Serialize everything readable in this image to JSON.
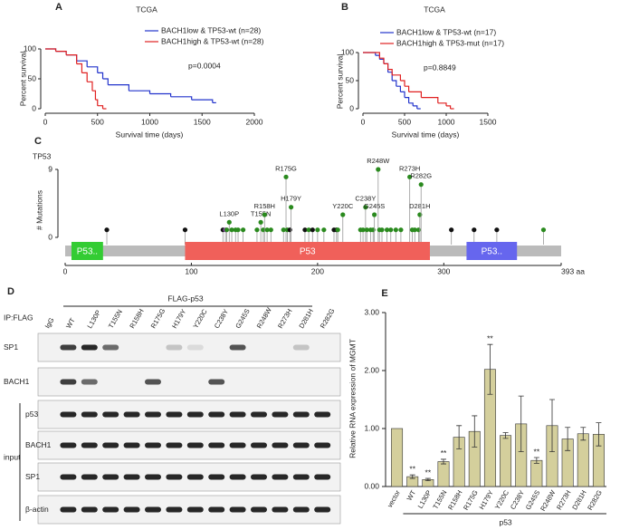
{
  "chart_data": [
    {
      "type": "km",
      "panel": "A",
      "title": "TCGA",
      "x_label": "Survival time (days)",
      "y_label": "Percent survival",
      "annotation": "p=0.0004",
      "xlim": [
        0,
        2000
      ],
      "xticks": [
        0,
        500,
        1000,
        1500,
        2000
      ],
      "ylim": [
        0,
        100
      ],
      "yticks": [
        0,
        50,
        100
      ],
      "series": [
        {
          "name": "BACH1low & TP53-wt (n=28)",
          "color": "#2233cc",
          "x": [
            0,
            100,
            200,
            300,
            400,
            500,
            550,
            600,
            800,
            1000,
            1200,
            1400,
            1600
          ],
          "values": [
            100,
            96,
            90,
            80,
            70,
            60,
            50,
            40,
            30,
            25,
            20,
            15,
            10
          ]
        },
        {
          "name": "BACH1high & TP53-wt (n=28)",
          "color": "#e02020",
          "x": [
            0,
            100,
            200,
            300,
            350,
            400,
            450,
            480,
            500,
            550
          ],
          "values": [
            100,
            96,
            90,
            75,
            60,
            45,
            30,
            15,
            5,
            0
          ]
        }
      ]
    },
    {
      "type": "km",
      "panel": "B",
      "title": "TCGA",
      "x_label": "Survival time (days)",
      "y_label": "Percent survival",
      "annotation": "p=0.8849",
      "xlim": [
        0,
        1500
      ],
      "xticks": [
        0,
        500,
        1000,
        1500
      ],
      "ylim": [
        0,
        100
      ],
      "yticks": [
        0,
        50,
        100
      ],
      "series": [
        {
          "name": "BACH1low & TP53-wt (n=17)",
          "color": "#2233cc",
          "x": [
            0,
            150,
            200,
            250,
            300,
            350,
            400,
            450,
            500,
            550,
            600,
            650
          ],
          "values": [
            100,
            95,
            88,
            80,
            65,
            50,
            40,
            30,
            20,
            10,
            5,
            0
          ]
        },
        {
          "name": "BACH1high & TP53-mut (n=17)",
          "color": "#e02020",
          "x": [
            0,
            200,
            250,
            300,
            350,
            450,
            500,
            550,
            700,
            900,
            1000,
            1050
          ],
          "values": [
            100,
            90,
            80,
            70,
            60,
            50,
            40,
            30,
            20,
            10,
            5,
            0
          ]
        }
      ]
    },
    {
      "type": "lollipop",
      "panel": "C",
      "title": "TP53",
      "y_label": "# Mutations",
      "xlim": [
        0,
        393
      ],
      "xticks": [
        0,
        100,
        200,
        {
          "value": 300,
          "label": "300"
        },
        {
          "value": 393,
          "label": "393 aa"
        }
      ],
      "ylim": [
        0,
        9
      ],
      "yticks": [
        0,
        9
      ],
      "x": [
        33,
        95,
        125,
        127,
        128,
        130,
        132,
        135,
        137,
        141,
        152,
        155,
        157,
        158,
        160,
        163,
        173,
        175,
        176,
        178,
        179,
        190,
        193,
        196,
        200,
        205,
        213,
        215,
        216,
        220,
        234,
        236,
        238,
        239,
        242,
        244,
        245,
        248,
        249,
        251,
        255,
        258,
        262,
        266,
        273,
        275,
        277,
        280,
        281,
        282,
        306,
        324,
        342,
        379
      ],
      "values": [
        1,
        1,
        1,
        1,
        1,
        2,
        1,
        1,
        1,
        1,
        1,
        2,
        1,
        3,
        1,
        1,
        1,
        8,
        1,
        1,
        4,
        1,
        1,
        1,
        1,
        1,
        1,
        1,
        1,
        3,
        1,
        1,
        4,
        1,
        1,
        1,
        3,
        9,
        1,
        1,
        1,
        1,
        1,
        1,
        8,
        1,
        1,
        1,
        3,
        7,
        1,
        1,
        1,
        1
      ],
      "labels": [
        null,
        null,
        null,
        null,
        null,
        "L130P",
        null,
        null,
        null,
        null,
        null,
        "T155N",
        null,
        "R158H",
        null,
        null,
        null,
        "R175G",
        null,
        null,
        "H179Y",
        null,
        null,
        null,
        null,
        null,
        null,
        null,
        null,
        "Y220C",
        null,
        null,
        "C238Y",
        null,
        null,
        null,
        "G245S",
        "R248W",
        null,
        null,
        null,
        null,
        null,
        null,
        "R273H",
        null,
        null,
        null,
        "D281H",
        "R282G",
        null,
        null,
        null,
        null
      ],
      "colors": [
        "#111",
        "#111",
        "#111",
        "#8e44ad",
        "#2a8a1e",
        "#2a8a1e",
        "#2a8a1e",
        "#2a8a1e",
        "#2a8a1e",
        "#2a8a1e",
        "#2a8a1e",
        "#2a8a1e",
        "#2a8a1e",
        "#2a8a1e",
        "#2a8a1e",
        "#2a8a1e",
        "#2a8a1e",
        "#2a8a1e",
        "#2a8a1e",
        "#111",
        "#2a8a1e",
        "#111",
        "#2a8a1e",
        "#111",
        "#2a8a1e",
        "#2a8a1e",
        "#111",
        "#111",
        "#2a8a1e",
        "#2a8a1e",
        "#2a8a1e",
        "#2a8a1e",
        "#2a8a1e",
        "#2a8a1e",
        "#2a8a1e",
        "#2a8a1e",
        "#2a8a1e",
        "#2a8a1e",
        "#2a8a1e",
        "#2a8a1e",
        "#2a8a1e",
        "#2a8a1e",
        "#2a8a1e",
        "#2a8a1e",
        "#2a8a1e",
        "#2a8a1e",
        "#2a8a1e",
        "#2a8a1e",
        "#2a8a1e",
        "#2a8a1e",
        "#111",
        "#111",
        "#111",
        "#2a8a1e"
      ],
      "domains": [
        {
          "label": "P53..",
          "start": 5,
          "end": 30,
          "color": "#33cc33"
        },
        {
          "label": "P53",
          "start": 95,
          "end": 289,
          "color": "#f0605a"
        },
        {
          "label": "P53..",
          "start": 318,
          "end": 358,
          "color": "#6666ee"
        }
      ]
    },
    {
      "type": "blot",
      "panel": "D",
      "header": "FLAG-p53",
      "ip_label": "IP:FLAG",
      "group_label": "input",
      "lanes": [
        "IgG",
        "WT",
        "L130P",
        "T155N",
        "R158H",
        "R175G",
        "H179Y",
        "Y220C",
        "C238Y",
        "G245S",
        "R248W",
        "R273H",
        "D281H",
        "R282G"
      ],
      "rows": [
        "SP1",
        "BACH1",
        "p53",
        "BACH1",
        "SP1",
        "β-actin"
      ]
    },
    {
      "type": "bar",
      "panel": "E",
      "y_label": "Relative RNA expression of MGMT",
      "group_label": "p53",
      "color": "#d4cf9c",
      "categories": [
        "vector",
        "WT",
        "L130P",
        "T155N",
        "R158H",
        "R175G",
        "H179Y",
        "Y220C",
        "C238Y",
        "G245S",
        "R248W",
        "R273H",
        "D281H",
        "R282G"
      ],
      "values": [
        1.0,
        0.17,
        0.12,
        0.43,
        0.85,
        0.95,
        2.02,
        0.88,
        1.08,
        0.45,
        1.05,
        0.82,
        0.91,
        0.9
      ],
      "errors": [
        null,
        0.03,
        0.02,
        0.04,
        0.2,
        0.27,
        0.43,
        0.05,
        0.48,
        0.05,
        0.45,
        0.2,
        0.11,
        0.2
      ],
      "significance": [
        null,
        "**",
        "**",
        "**",
        null,
        null,
        "**",
        null,
        null,
        "**",
        null,
        null,
        null,
        null
      ],
      "ylim": [
        0,
        3
      ],
      "yticks": [
        {
          "value": 0,
          "label": "0.00"
        },
        {
          "value": 1,
          "label": "1.00"
        },
        {
          "value": 2,
          "label": "2.00"
        },
        {
          "value": 3,
          "label": "3.00"
        }
      ]
    }
  ]
}
